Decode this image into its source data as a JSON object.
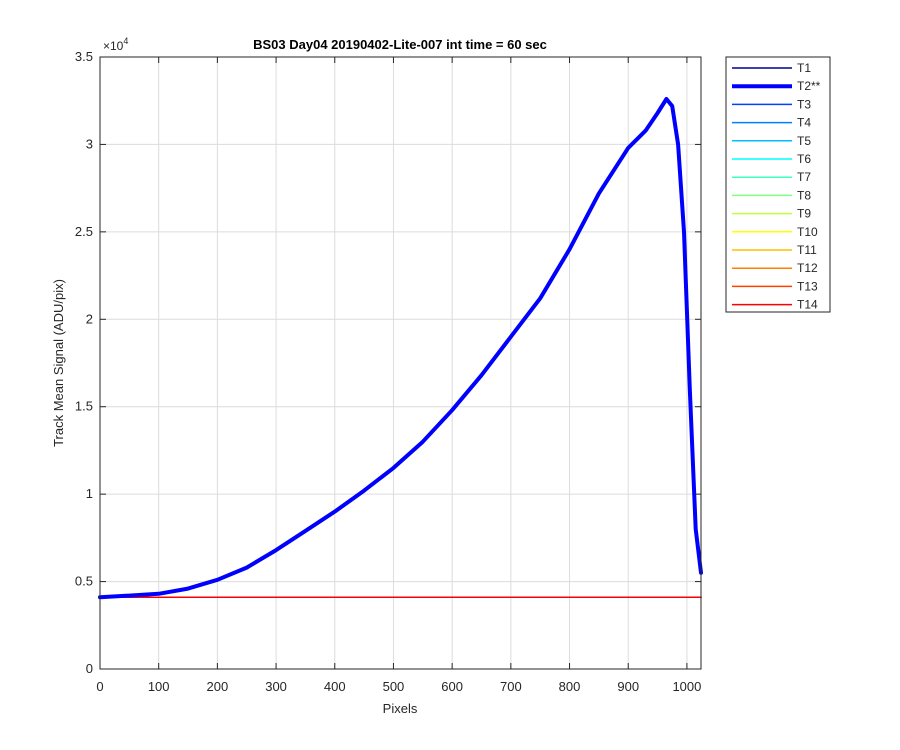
{
  "chart_data": {
    "type": "line",
    "title": "BS03 Day04 20190402-Lite-007 int time = 60 sec",
    "xlabel": "Pixels",
    "ylabel": "Track Mean Signal (ADU/pix)",
    "y_exponent_label": "×10",
    "y_exponent_power": "4",
    "xlim": [
      0,
      1024
    ],
    "ylim": [
      0,
      3.5
    ],
    "x_ticks": [
      0,
      100,
      200,
      300,
      400,
      500,
      600,
      700,
      800,
      900,
      1000
    ],
    "x_tick_labels": [
      "0",
      "100",
      "200",
      "300",
      "400",
      "500",
      "600",
      "700",
      "800",
      "900",
      "1000"
    ],
    "y_ticks": [
      0,
      0.5,
      1,
      1.5,
      2,
      2.5,
      3,
      3.5
    ],
    "y_tick_labels": [
      "0",
      "0.5",
      "1",
      "1.5",
      "2",
      "2.5",
      "3",
      "3.5"
    ],
    "grid": true,
    "legend_position": "outside-right",
    "series": [
      {
        "name": "T1",
        "color": "#00008f",
        "width": 1.5,
        "x": [
          0,
          1024
        ],
        "y": [
          0.41,
          0.41
        ]
      },
      {
        "name": "T2**",
        "color": "#0000ff",
        "width": 4,
        "x": [
          0,
          50,
          100,
          150,
          200,
          250,
          300,
          350,
          400,
          450,
          500,
          550,
          600,
          650,
          700,
          750,
          800,
          850,
          900,
          930,
          950,
          965,
          975,
          985,
          995,
          1005,
          1015,
          1024
        ],
        "y": [
          0.41,
          0.42,
          0.43,
          0.46,
          0.51,
          0.58,
          0.68,
          0.79,
          0.9,
          1.02,
          1.15,
          1.3,
          1.48,
          1.68,
          1.9,
          2.12,
          2.4,
          2.72,
          2.98,
          3.08,
          3.18,
          3.26,
          3.22,
          3.0,
          2.5,
          1.6,
          0.8,
          0.55
        ]
      },
      {
        "name": "T3",
        "color": "#0040ff",
        "width": 1.5,
        "x": [
          0,
          1024
        ],
        "y": [
          0.41,
          0.41
        ]
      },
      {
        "name": "T4",
        "color": "#0080ff",
        "width": 1.5,
        "x": [
          0,
          1024
        ],
        "y": [
          0.41,
          0.41
        ]
      },
      {
        "name": "T5",
        "color": "#00bfff",
        "width": 1.5,
        "x": [
          0,
          1024
        ],
        "y": [
          0.41,
          0.41
        ]
      },
      {
        "name": "T6",
        "color": "#00ffff",
        "width": 1.5,
        "x": [
          0,
          1024
        ],
        "y": [
          0.41,
          0.41
        ]
      },
      {
        "name": "T7",
        "color": "#40ffbf",
        "width": 1.5,
        "x": [
          0,
          1024
        ],
        "y": [
          0.41,
          0.41
        ]
      },
      {
        "name": "T8",
        "color": "#80ff80",
        "width": 1.5,
        "x": [
          0,
          1024
        ],
        "y": [
          0.41,
          0.41
        ]
      },
      {
        "name": "T9",
        "color": "#bfff40",
        "width": 1.5,
        "x": [
          0,
          1024
        ],
        "y": [
          0.41,
          0.41
        ]
      },
      {
        "name": "T10",
        "color": "#ffff00",
        "width": 1.5,
        "x": [
          0,
          1024
        ],
        "y": [
          0.41,
          0.41
        ]
      },
      {
        "name": "T11",
        "color": "#ffbf00",
        "width": 1.5,
        "x": [
          0,
          1024
        ],
        "y": [
          0.41,
          0.41
        ]
      },
      {
        "name": "T12",
        "color": "#ff8000",
        "width": 1.5,
        "x": [
          0,
          1024
        ],
        "y": [
          0.41,
          0.41
        ]
      },
      {
        "name": "T13",
        "color": "#ff4000",
        "width": 1.5,
        "x": [
          0,
          1024
        ],
        "y": [
          0.41,
          0.41
        ]
      },
      {
        "name": "T14",
        "color": "#ff0000",
        "width": 1.5,
        "x": [
          0,
          1024
        ],
        "y": [
          0.41,
          0.41
        ]
      }
    ]
  }
}
